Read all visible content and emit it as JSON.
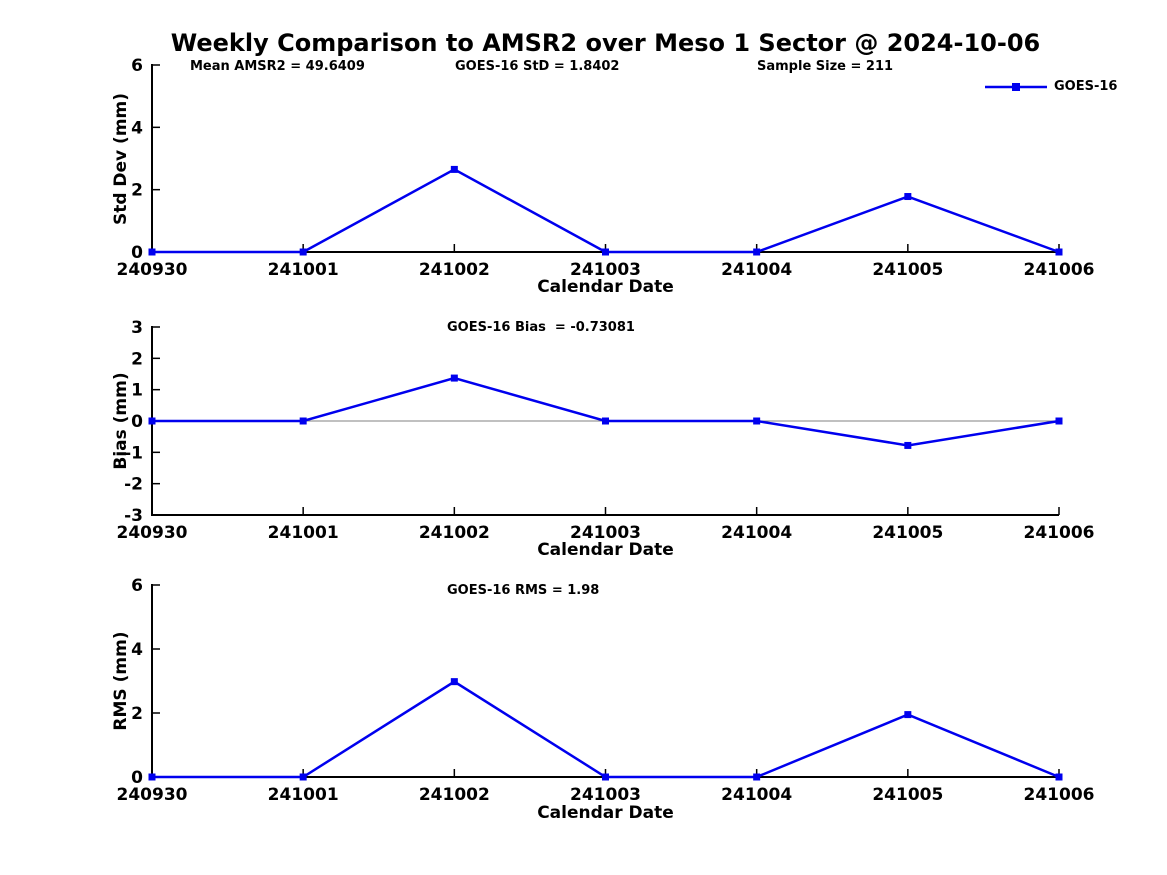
{
  "title": "Weekly Comparison to AMSR2 over Meso 1 Sector @ 2024-10-06",
  "legend": {
    "label": "GOES-16",
    "marker": "square"
  },
  "colors": {
    "line": "#0000ee",
    "zero_line": "#808080",
    "axis": "#000000",
    "background": "#ffffff"
  },
  "chart_data": [
    {
      "type": "line",
      "panel": "std-dev",
      "annotations": [
        {
          "text": "Mean AMSR2 = 49.6409"
        },
        {
          "text": "GOES-16 StD = 1.8402"
        },
        {
          "text": "Sample Size = 211"
        }
      ],
      "xlabel": "Calendar Date",
      "ylabel": "Std Dev (mm)",
      "ylim": [
        0,
        6
      ],
      "yticks": [
        0,
        2,
        4,
        6
      ],
      "grid": false,
      "legend_position": "top-right",
      "categories": [
        "240930",
        "241001",
        "241002",
        "241003",
        "241004",
        "241005",
        "241006"
      ],
      "series": [
        {
          "name": "GOES-16",
          "values": [
            0,
            0,
            2.65,
            0,
            0,
            1.78,
            0
          ]
        }
      ]
    },
    {
      "type": "line",
      "panel": "bias",
      "annotations": [
        {
          "text": "GOES-16 Bias  = -0.73081"
        }
      ],
      "xlabel": "Calendar Date",
      "ylabel": "Bias (mm)",
      "ylim": [
        -3,
        3
      ],
      "yticks": [
        -3,
        -2,
        -1,
        0,
        1,
        2,
        3
      ],
      "grid": false,
      "zero_line": true,
      "categories": [
        "240930",
        "241001",
        "241002",
        "241003",
        "241004",
        "241005",
        "241006"
      ],
      "series": [
        {
          "name": "GOES-16",
          "values": [
            0,
            0,
            1.37,
            0,
            0,
            -0.78,
            0
          ]
        }
      ]
    },
    {
      "type": "line",
      "panel": "rms",
      "annotations": [
        {
          "text": "GOES-16 RMS = 1.98"
        }
      ],
      "xlabel": "Calendar Date",
      "ylabel": "RMS (mm)",
      "ylim": [
        0,
        6
      ],
      "yticks": [
        0,
        2,
        4,
        6
      ],
      "grid": false,
      "categories": [
        "240930",
        "241001",
        "241002",
        "241003",
        "241004",
        "241005",
        "241006"
      ],
      "series": [
        {
          "name": "GOES-16",
          "values": [
            0,
            0,
            2.98,
            0,
            0,
            1.95,
            0
          ]
        }
      ]
    }
  ]
}
